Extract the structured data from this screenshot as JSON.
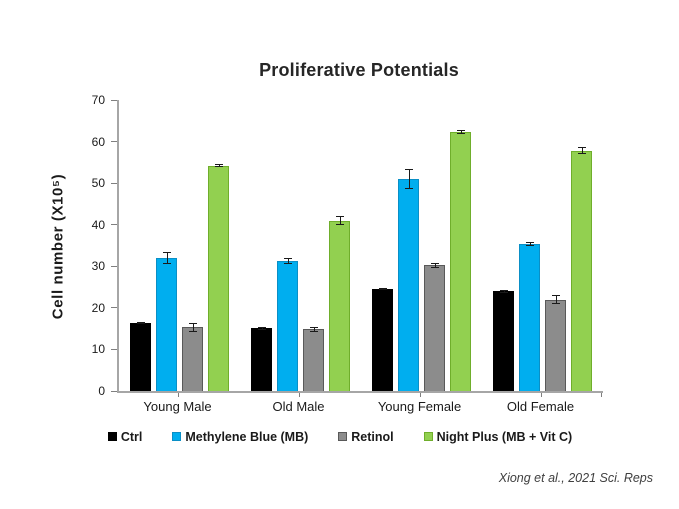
{
  "chart_data": {
    "type": "bar",
    "title": "Proliferative Potentials",
    "xlabel": "",
    "ylabel": "Cell number (X10⁵)",
    "ylim": [
      0,
      70
    ],
    "yticks": [
      0,
      10,
      20,
      30,
      40,
      50,
      60,
      70
    ],
    "grid": false,
    "legend_position": "bottom",
    "error_bars": true,
    "categories": [
      "Young Male",
      "Old Male",
      "Young Female",
      "Old Female"
    ],
    "series": [
      {
        "name": "Ctrl",
        "color": "#000000",
        "edge_color": "#000000",
        "values": [
          16.4,
          15.1,
          24.5,
          24.0
        ],
        "errors": [
          0.3,
          0.4,
          0.3,
          0.4
        ]
      },
      {
        "name": "Methylene Blue (MB)",
        "color": "#00AEEF",
        "edge_color": "#0A8FC6",
        "values": [
          32.0,
          31.3,
          51.0,
          35.3
        ],
        "errors": [
          1.5,
          0.8,
          2.5,
          0.5
        ]
      },
      {
        "name": "Retinol",
        "color": "#8C8C8C",
        "edge_color": "#595959",
        "values": [
          15.3,
          14.8,
          30.3,
          22.0
        ],
        "errors": [
          1.0,
          0.5,
          0.6,
          1.0
        ]
      },
      {
        "name": "Night Plus (MB + Vit C)",
        "color": "#92D050",
        "edge_color": "#6FAE2B",
        "values": [
          54.2,
          41.0,
          62.4,
          57.8
        ],
        "errors": [
          0.3,
          1.0,
          0.5,
          0.8
        ]
      }
    ]
  },
  "annotations": {
    "citation": "Xiong et al., 2021 Sci. Reps"
  },
  "colors": {
    "axis": "#A6A6A6",
    "tick": "#7F7F7F",
    "text": "#1A1A1A",
    "error_bar": "#1A1A1A",
    "background": "#FFFFFF"
  }
}
